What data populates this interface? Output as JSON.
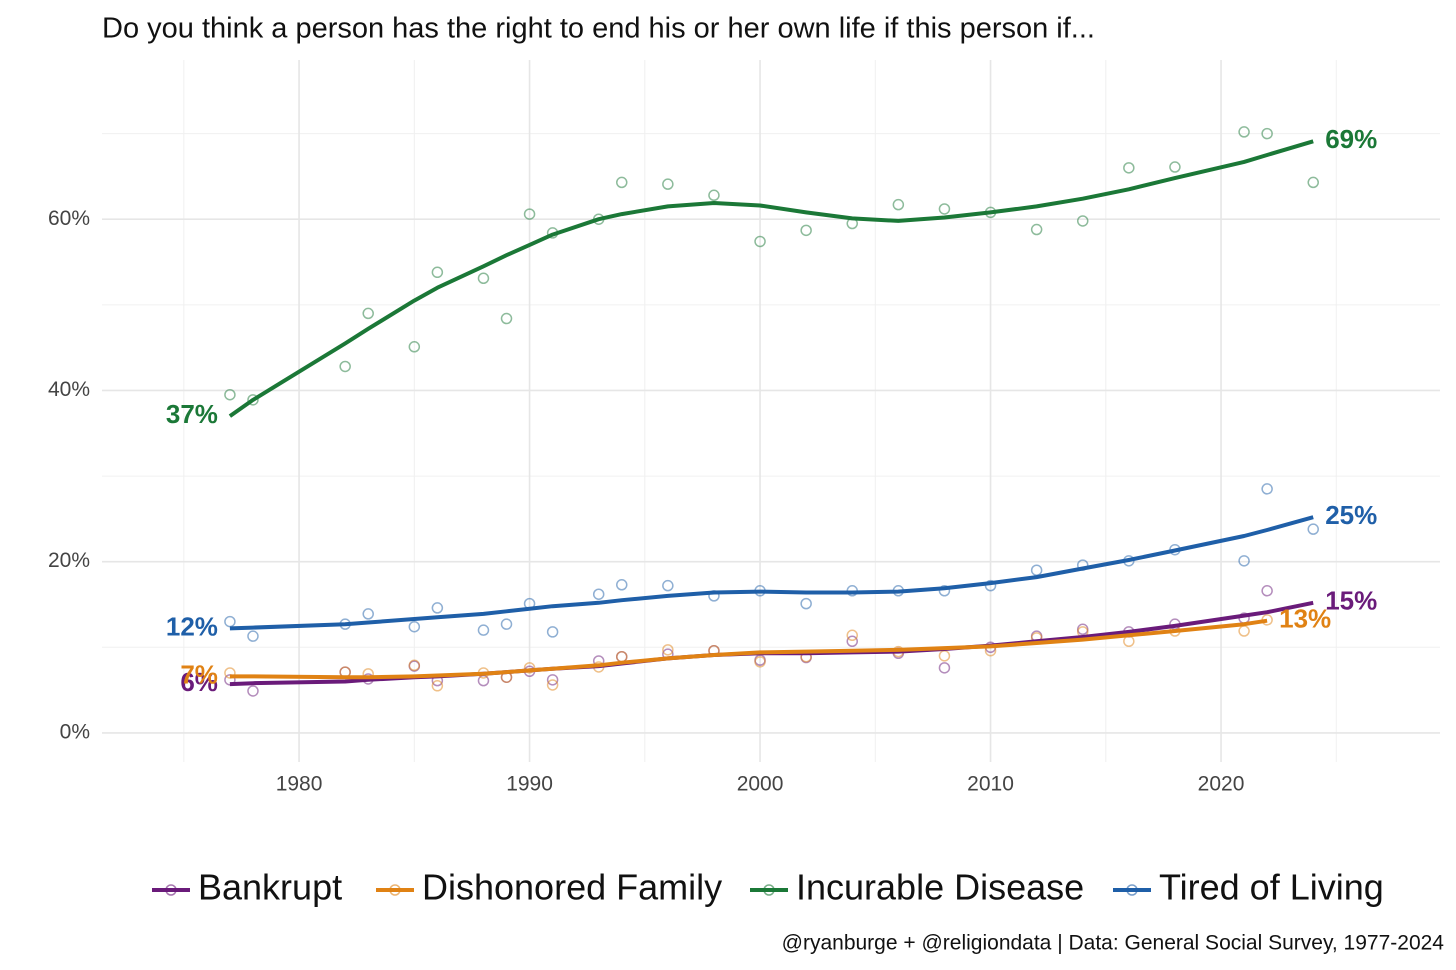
{
  "chart_data": {
    "type": "line",
    "title": "Do you think a person has the right to end his or her own life if this person if...",
    "caption": "@ryanburge + @religiondata | Data: General Social Survey, 1977-2024",
    "x": [
      1977,
      1978,
      1982,
      1983,
      1985,
      1986,
      1988,
      1989,
      1990,
      1991,
      1993,
      1994,
      1996,
      1998,
      2000,
      2002,
      2004,
      2006,
      2008,
      2010,
      2012,
      2014,
      2016,
      2018,
      2021,
      2022,
      2024
    ],
    "xlim": [
      1971.45,
      2029.5
    ],
    "xticks": [
      1980,
      1990,
      2000,
      2010,
      2020
    ],
    "xminor": [
      1975,
      1985,
      1995,
      2005,
      2015,
      2025
    ],
    "ylim": [
      -3.4,
      78.6
    ],
    "yticks": [
      {
        "value": 0,
        "label": "0%"
      },
      {
        "value": 20,
        "label": "20%"
      },
      {
        "value": 40,
        "label": "40%"
      },
      {
        "value": 60,
        "label": "60%"
      }
    ],
    "yminor": [
      10,
      30,
      50,
      70
    ],
    "grid": true,
    "legend": "bottom",
    "series": [
      {
        "name": "Bankrupt",
        "color": "#6a1b7a",
        "values": [
          6.2,
          4.9,
          7.1,
          6.3,
          7.8,
          6.1,
          6.1,
          6.5,
          7.2,
          6.2,
          8.4,
          8.9,
          9.2,
          9.6,
          8.5,
          8.8,
          10.7,
          9.3,
          7.6,
          10.0,
          11.3,
          12.1,
          11.8,
          12.7,
          13.4,
          16.6,
          null
        ],
        "trend": [
          5.7,
          5.8,
          6.0,
          6.2,
          6.5,
          6.6,
          6.9,
          7.1,
          7.3,
          7.5,
          7.8,
          8.1,
          8.7,
          9.1,
          9.3,
          9.3,
          9.4,
          9.5,
          9.8,
          10.2,
          10.7,
          11.2,
          11.8,
          12.5,
          13.7,
          14.1,
          15.2
        ],
        "trend_labels": [
          "6%",
          null,
          null,
          null,
          null,
          null,
          null,
          null,
          null,
          null,
          null,
          null,
          null,
          null,
          null,
          null,
          null,
          null,
          null,
          null,
          null,
          null,
          null,
          null,
          null,
          null,
          "15%"
        ]
      },
      {
        "name": "Dishonored Family",
        "color": "#e08214",
        "values": [
          7.0,
          null,
          7.1,
          6.9,
          7.9,
          5.5,
          7.0,
          6.5,
          7.6,
          5.6,
          7.7,
          8.9,
          9.7,
          9.6,
          8.3,
          8.9,
          11.4,
          9.5,
          9.0,
          9.6,
          11.1,
          11.8,
          10.7,
          11.9,
          11.9,
          13.2,
          null
        ],
        "trend": [
          6.6,
          6.6,
          6.5,
          6.5,
          6.6,
          6.7,
          6.9,
          7.1,
          7.3,
          7.5,
          7.9,
          8.2,
          8.7,
          9.1,
          9.4,
          9.5,
          9.6,
          9.7,
          9.9,
          10.1,
          10.5,
          10.9,
          11.4,
          11.9,
          12.7,
          13.1,
          null
        ],
        "trend_labels": [
          "7%",
          null,
          null,
          null,
          null,
          null,
          null,
          null,
          null,
          null,
          null,
          null,
          null,
          null,
          null,
          null,
          null,
          null,
          null,
          null,
          null,
          null,
          null,
          null,
          null,
          "13%",
          null
        ]
      },
      {
        "name": "Incurable Disease",
        "color": "#1b7837",
        "values": [
          39.5,
          38.9,
          42.8,
          49.0,
          45.1,
          53.8,
          53.1,
          48.4,
          60.6,
          58.4,
          60.0,
          64.3,
          64.1,
          62.8,
          57.4,
          58.7,
          59.5,
          61.7,
          61.2,
          60.8,
          58.8,
          59.8,
          66.0,
          66.1,
          70.2,
          70.0,
          64.3
        ],
        "trend": [
          37.0,
          38.9,
          45.5,
          47.2,
          50.5,
          52.0,
          54.5,
          55.8,
          57.0,
          58.2,
          60.0,
          60.6,
          61.5,
          61.9,
          61.6,
          60.8,
          60.1,
          59.8,
          60.2,
          60.8,
          61.5,
          62.4,
          63.5,
          64.8,
          66.7,
          67.5,
          69.1
        ],
        "trend_labels": [
          "37%",
          null,
          null,
          null,
          null,
          null,
          null,
          null,
          null,
          null,
          null,
          null,
          null,
          null,
          null,
          null,
          null,
          null,
          null,
          null,
          null,
          null,
          null,
          null,
          null,
          null,
          "69%"
        ]
      },
      {
        "name": "Tired of Living",
        "color": "#1f5fa8",
        "values": [
          13.0,
          11.3,
          12.7,
          13.9,
          12.4,
          14.6,
          12.0,
          12.7,
          15.1,
          11.8,
          16.2,
          17.3,
          17.2,
          16.0,
          16.6,
          15.1,
          16.6,
          16.6,
          16.6,
          17.2,
          19.0,
          19.6,
          20.1,
          21.4,
          20.1,
          28.5,
          23.8
        ],
        "trend": [
          12.2,
          12.3,
          12.7,
          12.9,
          13.3,
          13.5,
          13.9,
          14.2,
          14.5,
          14.8,
          15.2,
          15.5,
          16.0,
          16.4,
          16.5,
          16.4,
          16.4,
          16.5,
          16.9,
          17.5,
          18.2,
          19.2,
          20.2,
          21.3,
          23.0,
          23.7,
          25.2
        ],
        "trend_labels": [
          "12%",
          null,
          null,
          null,
          null,
          null,
          null,
          null,
          null,
          null,
          null,
          null,
          null,
          null,
          null,
          null,
          null,
          null,
          null,
          null,
          null,
          null,
          null,
          null,
          null,
          null,
          "25%"
        ]
      }
    ]
  }
}
